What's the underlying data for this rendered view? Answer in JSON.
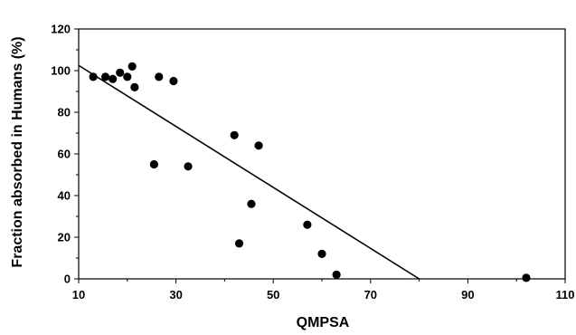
{
  "chart_data": {
    "type": "scatter",
    "title": "",
    "xlabel": "QMPSA",
    "ylabel": "Fraction absorbed in Humans (%)",
    "xlim": [
      10,
      110
    ],
    "ylim": [
      0,
      120
    ],
    "x_ticks": [
      10,
      30,
      50,
      70,
      90,
      110
    ],
    "y_ticks": [
      0,
      20,
      40,
      60,
      80,
      100,
      120
    ],
    "grid": false,
    "legend": "none",
    "marker_color": "#000000",
    "series": [
      {
        "points": [
          {
            "x": 13.0,
            "y": 97
          },
          {
            "x": 15.5,
            "y": 97
          },
          {
            "x": 17.0,
            "y": 96
          },
          {
            "x": 18.5,
            "y": 99
          },
          {
            "x": 20.0,
            "y": 97
          },
          {
            "x": 21.0,
            "y": 102
          },
          {
            "x": 21.5,
            "y": 92
          },
          {
            "x": 25.5,
            "y": 55
          },
          {
            "x": 26.5,
            "y": 97
          },
          {
            "x": 29.5,
            "y": 95
          },
          {
            "x": 32.5,
            "y": 54
          },
          {
            "x": 42.0,
            "y": 69
          },
          {
            "x": 43.0,
            "y": 17
          },
          {
            "x": 45.5,
            "y": 36
          },
          {
            "x": 47.0,
            "y": 64
          },
          {
            "x": 57.0,
            "y": 26
          },
          {
            "x": 60.0,
            "y": 12
          },
          {
            "x": 63.0,
            "y": 2
          },
          {
            "x": 102.0,
            "y": 0.5
          }
        ]
      }
    ],
    "trend_line": {
      "points": [
        {
          "x": 10,
          "y": 102.5
        },
        {
          "x": 80,
          "y": 0
        }
      ]
    }
  }
}
